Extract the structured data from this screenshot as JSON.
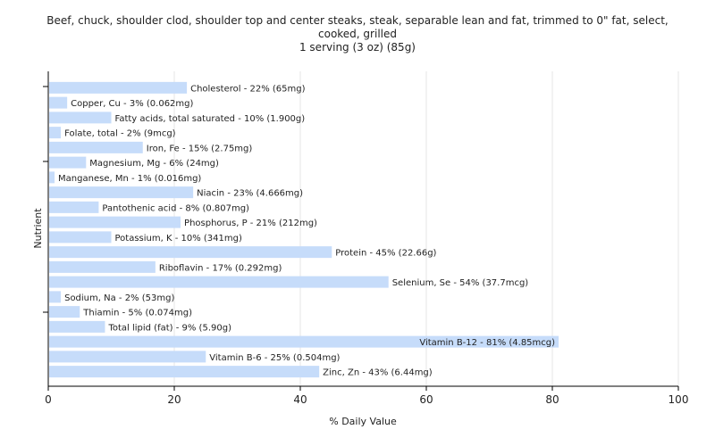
{
  "chart_data": {
    "type": "bar",
    "orientation": "horizontal",
    "title_lines": [
      "Beef, chuck, shoulder clod, shoulder top and center steaks, steak, separable lean and fat, trimmed to 0\" fat, select,",
      "cooked, grilled",
      "1 serving (3 oz) (85g)"
    ],
    "xlabel": "% Daily Value",
    "ylabel": "Nutrient",
    "xlim": [
      0,
      100
    ],
    "xticks": [
      "0",
      "20",
      "40",
      "60",
      "80",
      "100"
    ],
    "grid": true,
    "bar_color": "#c6dcfa",
    "bars": [
      {
        "label": "Cholesterol - 22% (65mg)",
        "value": 22
      },
      {
        "label": "Copper, Cu - 3% (0.062mg)",
        "value": 3
      },
      {
        "label": "Fatty acids, total saturated - 10% (1.900g)",
        "value": 10
      },
      {
        "label": "Folate, total - 2% (9mcg)",
        "value": 2
      },
      {
        "label": "Iron, Fe - 15% (2.75mg)",
        "value": 15
      },
      {
        "label": "Magnesium, Mg - 6% (24mg)",
        "value": 6
      },
      {
        "label": "Manganese, Mn - 1% (0.016mg)",
        "value": 1
      },
      {
        "label": "Niacin - 23% (4.666mg)",
        "value": 23
      },
      {
        "label": "Pantothenic acid - 8% (0.807mg)",
        "value": 8
      },
      {
        "label": "Phosphorus, P - 21% (212mg)",
        "value": 21
      },
      {
        "label": "Potassium, K - 10% (341mg)",
        "value": 10
      },
      {
        "label": "Protein - 45% (22.66g)",
        "value": 45
      },
      {
        "label": "Riboflavin - 17% (0.292mg)",
        "value": 17
      },
      {
        "label": "Selenium, Se - 54% (37.7mcg)",
        "value": 54
      },
      {
        "label": "Sodium, Na - 2% (53mg)",
        "value": 2
      },
      {
        "label": "Thiamin - 5% (0.074mg)",
        "value": 5
      },
      {
        "label": "Total lipid (fat) - 9% (5.90g)",
        "value": 9
      },
      {
        "label": "Vitamin B-12 - 81% (4.85mcg)",
        "value": 81
      },
      {
        "label": "Vitamin B-6 - 25% (0.504mg)",
        "value": 25
      },
      {
        "label": "Zinc, Zn - 43% (6.44mg)",
        "value": 43
      }
    ]
  }
}
